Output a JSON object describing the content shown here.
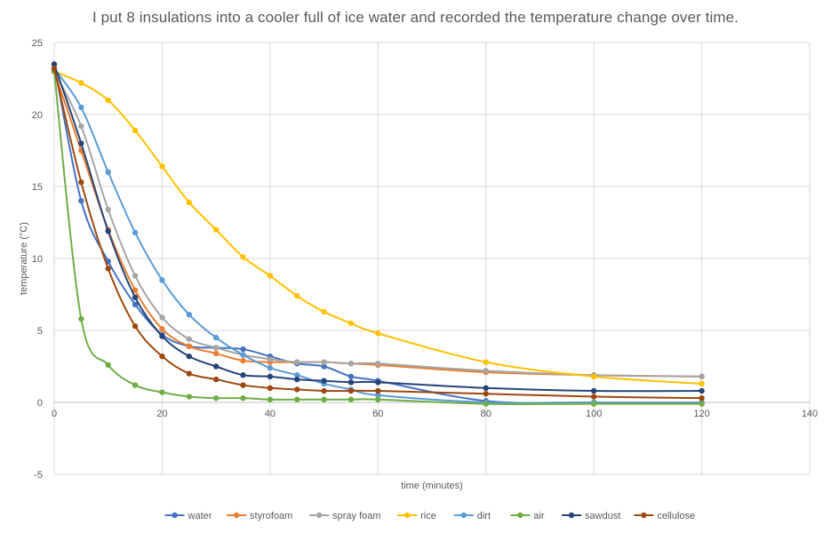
{
  "chart_data": {
    "type": "line",
    "title": "I put 8 insulations into a cooler full of ice water and recorded the temperature change over time.",
    "xlabel": "time (minutes)",
    "ylabel": "temperature (°C)",
    "xlim": [
      0,
      140
    ],
    "ylim": [
      -5,
      25
    ],
    "xticks": [
      0,
      20,
      40,
      60,
      80,
      100,
      120,
      140
    ],
    "yticks": [
      -5,
      0,
      5,
      10,
      15,
      20,
      25
    ],
    "grid": true,
    "legend_position": "bottom",
    "x": [
      0,
      5,
      10,
      15,
      20,
      25,
      30,
      35,
      40,
      45,
      50,
      55,
      60,
      80,
      100,
      120
    ],
    "series": [
      {
        "name": "water",
        "color": "#4472C4",
        "values": [
          23.5,
          14.0,
          9.8,
          6.8,
          4.7,
          3.9,
          3.8,
          3.7,
          3.2,
          2.7,
          2.5,
          1.8,
          1.5,
          0.1,
          0.0,
          0.0
        ]
      },
      {
        "name": "styrofoam",
        "color": "#ED7D31",
        "values": [
          23.0,
          17.5,
          12.0,
          7.8,
          5.1,
          3.9,
          3.4,
          2.9,
          2.8,
          2.8,
          2.8,
          2.7,
          2.6,
          2.1,
          1.9,
          1.8
        ]
      },
      {
        "name": "spray foam",
        "color": "#A5A5A5",
        "values": [
          23.0,
          19.2,
          13.4,
          8.8,
          5.9,
          4.4,
          3.8,
          3.3,
          3.0,
          2.8,
          2.8,
          2.7,
          2.7,
          2.2,
          1.9,
          1.8
        ]
      },
      {
        "name": "rice",
        "color": "#FFC000",
        "values": [
          23.0,
          22.2,
          21.0,
          18.9,
          16.4,
          13.9,
          12.0,
          10.1,
          8.8,
          7.4,
          6.3,
          5.5,
          4.8,
          2.8,
          1.8,
          1.3
        ]
      },
      {
        "name": "dirt",
        "color": "#5B9BD5",
        "values": [
          23.2,
          20.5,
          16.0,
          11.8,
          8.5,
          6.1,
          4.5,
          3.3,
          2.4,
          1.9,
          1.3,
          0.9,
          0.5,
          0.0,
          0.0,
          0.0
        ]
      },
      {
        "name": "air",
        "color": "#70AD47",
        "values": [
          23.0,
          5.8,
          2.6,
          1.2,
          0.7,
          0.4,
          0.3,
          0.3,
          0.2,
          0.2,
          0.2,
          0.2,
          0.2,
          -0.1,
          -0.1,
          -0.1
        ]
      },
      {
        "name": "sawdust",
        "color": "#264478",
        "values": [
          23.5,
          18.0,
          11.9,
          7.3,
          4.6,
          3.2,
          2.5,
          1.9,
          1.8,
          1.6,
          1.5,
          1.4,
          1.4,
          1.0,
          0.8,
          0.8
        ]
      },
      {
        "name": "cellulose",
        "color": "#9E480E",
        "values": [
          23.2,
          15.3,
          9.3,
          5.3,
          3.2,
          2.0,
          1.6,
          1.2,
          1.0,
          0.9,
          0.8,
          0.8,
          0.8,
          0.6,
          0.4,
          0.3
        ]
      }
    ]
  }
}
